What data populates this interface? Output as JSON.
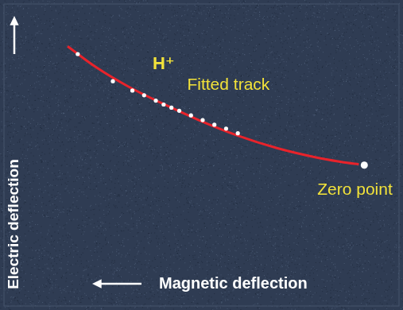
{
  "chart_data": {
    "type": "scatter",
    "xlabel": "Magnetic deflection",
    "ylabel": "Electric deflection",
    "xlim": [
      462,
      -45
    ],
    "ylim": [
      -182,
      208
    ],
    "tick_labels": false,
    "grid": false,
    "series": [
      {
        "type": "line",
        "color": "#e8232b",
        "line_style": "solid",
        "x": [
          380,
          342,
          302,
          262,
          212,
          162,
          112,
          62,
          22,
          7
        ],
        "values": [
          153,
          125,
          101,
          81,
          58,
          38,
          22,
          10,
          3,
          1
        ]
      },
      {
        "type": "scatter",
        "color": "#ffffff",
        "marker": "circle",
        "x": [
          367,
          322,
          297,
          282,
          267,
          257,
          247,
          237,
          222,
          207,
          192,
          177,
          162
        ],
        "values": [
          143,
          108,
          96,
          90,
          83,
          78,
          74,
          70,
          64,
          58,
          52,
          47,
          41
        ]
      },
      {
        "type": "scatter",
        "color": "#ffffff",
        "marker": "circle",
        "x": [
          0
        ],
        "values": [
          0
        ]
      }
    ],
    "annotations": [
      {
        "text": "H⁺",
        "x": 257,
        "y": 130
      },
      {
        "text": "Fitted track",
        "x": 174,
        "y": 103
      },
      {
        "text": "Zero point",
        "x": 12,
        "y": -32
      }
    ]
  }
}
